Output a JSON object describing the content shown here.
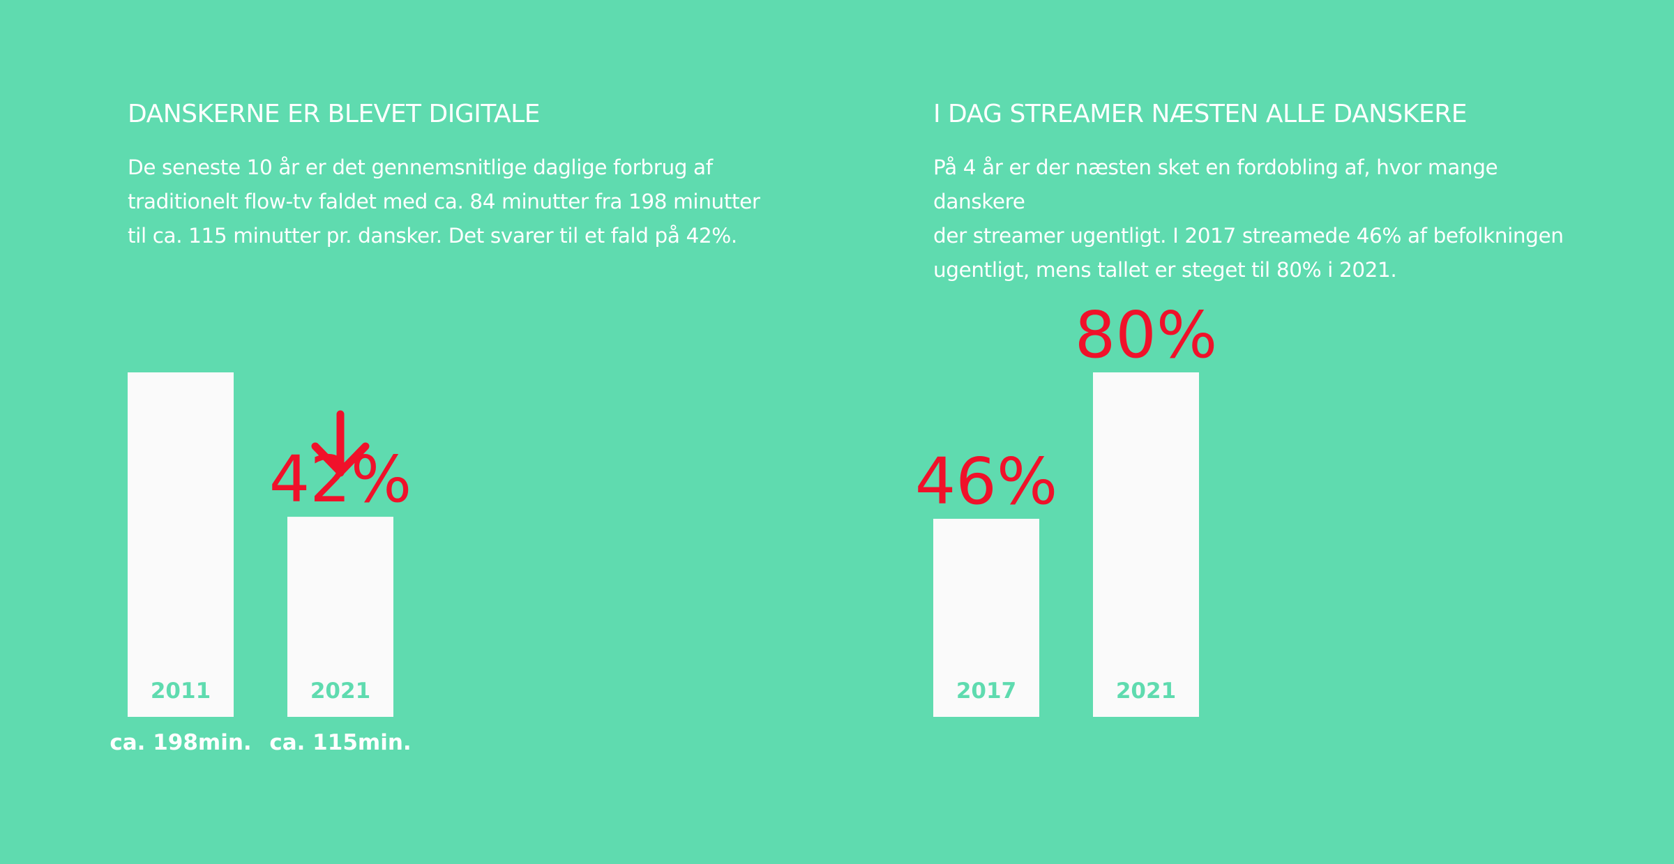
{
  "colors": {
    "background": "#5fdbaf",
    "bar": "#fafafa",
    "accent": "#f0112a",
    "text": "#ffffff"
  },
  "left": {
    "heading": "DANSKERNE ER BLEVET DIGITALE",
    "body_lines": [
      "De seneste 10 år er det gennemsnitlige daglige forbrug af",
      "traditionelt flow-tv faldet med ca. 84 minutter fra 198 minutter",
      "til ca. 115 minutter pr. dansker. Det svarer til et fald på 42%."
    ],
    "change_label": "42%",
    "change_icon": "arrow-down-icon"
  },
  "right": {
    "heading": "I DAG STREAMER NÆSTEN ALLE DANSKERE",
    "body_lines": [
      "På 4 år er der næsten sket en fordobling af, hvor mange danskere",
      "der streamer ugentligt. I 2017 streamede 46% af befolkningen",
      "ugentligt, mens tallet er steget til 80% i 2021."
    ]
  },
  "chart_data": [
    {
      "type": "bar",
      "categories": [
        "2011",
        "2021"
      ],
      "values": [
        198,
        115
      ],
      "value_labels": [
        "ca. 198min.",
        "ca. 115min."
      ],
      "ylim": [
        0,
        198
      ],
      "grid": false
    },
    {
      "type": "bar",
      "categories": [
        "2017",
        "2021"
      ],
      "values": [
        46,
        80
      ],
      "value_labels": [
        "46%",
        "80%"
      ],
      "ylim": [
        0,
        80
      ],
      "grid": false
    }
  ]
}
